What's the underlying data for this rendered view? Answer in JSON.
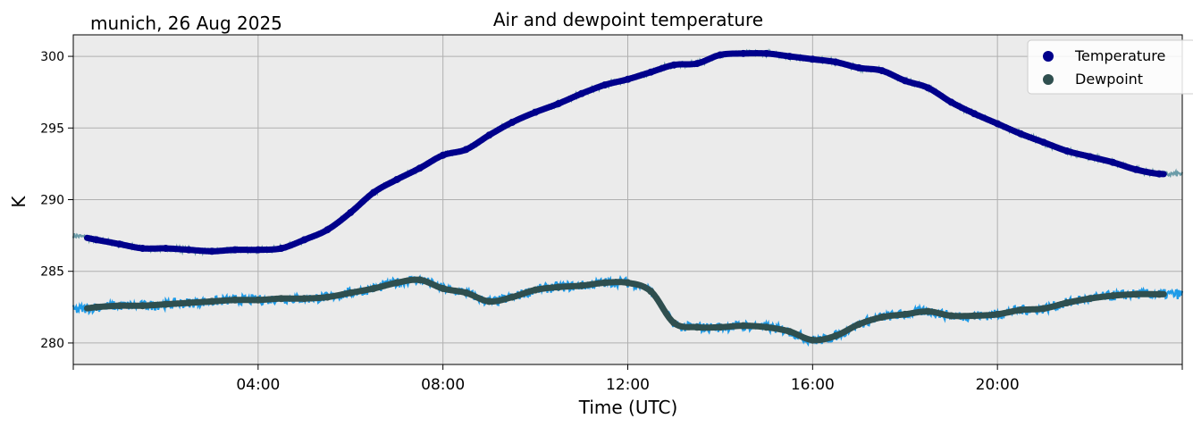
{
  "chart_data": {
    "type": "line",
    "title": "Air and dewpoint temperature",
    "subtitle": "munich, 26 Aug 2025",
    "xlabel": "Time (UTC)",
    "ylabel": "K",
    "xlim": [
      0,
      24
    ],
    "ylim": [
      278.5,
      301.5
    ],
    "grid": true,
    "legend_position": "top-right",
    "x_ticks": [
      {
        "value": 4,
        "label": "04:00"
      },
      {
        "value": 8,
        "label": "08:00"
      },
      {
        "value": 12,
        "label": "12:00"
      },
      {
        "value": 16,
        "label": "16:00"
      },
      {
        "value": 20,
        "label": "20:00"
      }
    ],
    "y_ticks": [
      {
        "value": 280,
        "label": "280"
      },
      {
        "value": 285,
        "label": "285"
      },
      {
        "value": 290,
        "label": "290"
      },
      {
        "value": 295,
        "label": "295"
      },
      {
        "value": 300,
        "label": "300"
      }
    ],
    "series": [
      {
        "name": "Temperature",
        "color": "#00008b",
        "raw_color": "#6b9ca8",
        "x": [
          0,
          0.5,
          1,
          1.5,
          2,
          2.5,
          3,
          3.5,
          4,
          4.5,
          5,
          5.5,
          6,
          6.5,
          7,
          7.5,
          8,
          8.5,
          9,
          9.5,
          10,
          10.5,
          11,
          11.5,
          12,
          12.5,
          13,
          13.5,
          14,
          14.5,
          15,
          15.5,
          16,
          16.5,
          17,
          17.5,
          18,
          18.5,
          19,
          19.5,
          20,
          20.5,
          21,
          21.5,
          22,
          22.5,
          23,
          23.5,
          24
        ],
        "values": [
          287.5,
          287.2,
          286.9,
          286.6,
          286.6,
          286.5,
          286.4,
          286.5,
          286.5,
          286.6,
          287.2,
          287.9,
          289.1,
          290.5,
          291.4,
          292.2,
          293.1,
          293.5,
          294.5,
          295.4,
          296.1,
          296.7,
          297.4,
          298.0,
          298.4,
          298.9,
          299.4,
          299.5,
          300.1,
          300.2,
          300.2,
          300.0,
          299.8,
          299.6,
          299.2,
          299.0,
          298.3,
          297.8,
          296.8,
          296.0,
          295.3,
          294.6,
          294.0,
          293.4,
          293.0,
          292.6,
          292.1,
          291.8,
          291.8
        ]
      },
      {
        "name": "Dewpoint",
        "color": "#2f4f4f",
        "raw_color": "#1e9be8",
        "x": [
          0,
          0.5,
          1,
          1.5,
          2,
          2.5,
          3,
          3.5,
          4,
          4.5,
          5,
          5.5,
          6,
          6.5,
          7,
          7.5,
          8,
          8.5,
          9,
          9.5,
          10,
          10.5,
          11,
          11.5,
          12,
          12.5,
          13,
          13.5,
          14,
          14.5,
          15,
          15.5,
          16,
          16.5,
          17,
          17.5,
          18,
          18.5,
          19,
          19.5,
          20,
          20.5,
          21,
          21.5,
          22,
          22.5,
          23,
          23.5,
          24
        ],
        "values": [
          282.3,
          282.5,
          282.6,
          282.6,
          282.7,
          282.8,
          282.9,
          283.0,
          283.0,
          283.1,
          283.1,
          283.2,
          283.5,
          283.8,
          284.2,
          284.4,
          283.8,
          283.5,
          282.9,
          283.2,
          283.7,
          283.9,
          284.0,
          284.2,
          284.2,
          283.6,
          281.4,
          281.1,
          281.1,
          281.2,
          281.1,
          280.8,
          280.2,
          280.5,
          281.3,
          281.8,
          282.0,
          282.2,
          281.9,
          281.9,
          282.0,
          282.3,
          282.4,
          282.8,
          283.1,
          283.3,
          283.4,
          283.4,
          283.4
        ]
      }
    ]
  }
}
